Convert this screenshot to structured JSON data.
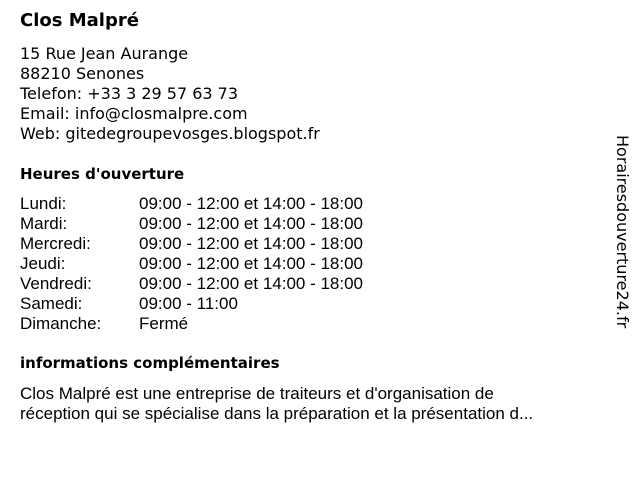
{
  "business": {
    "name": "Clos Malpré",
    "address_line1": "15 Rue Jean Aurange",
    "address_line2": "88210 Senones",
    "phone": "Telefon: +33 3 29 57 63 73",
    "email": "Email: info@closmalpre.com",
    "web": "Web: gitedegroupevosges.blogspot.fr"
  },
  "hours": {
    "heading": "Heures d'ouverture",
    "rows": [
      {
        "day": "Lundi:",
        "time": "09:00 - 12:00 et 14:00 - 18:00"
      },
      {
        "day": "Mardi:",
        "time": "09:00 - 12:00 et 14:00 - 18:00"
      },
      {
        "day": "Mercredi:",
        "time": "09:00 - 12:00 et 14:00 - 18:00"
      },
      {
        "day": "Jeudi:",
        "time": "09:00 - 12:00 et 14:00 - 18:00"
      },
      {
        "day": "Vendredi:",
        "time": "09:00 - 12:00 et 14:00 - 18:00"
      },
      {
        "day": "Samedi:",
        "time": "09:00 - 11:00"
      },
      {
        "day": "Dimanche:",
        "time": "Fermé"
      }
    ]
  },
  "info": {
    "heading": "informations complémentaires",
    "line1": "Clos Malpré est une entreprise de traiteurs et d'organisation de",
    "line2": "réception qui se spécialise dans la préparation et la présentation d..."
  },
  "watermark": "Horairesdouverture24.fr"
}
